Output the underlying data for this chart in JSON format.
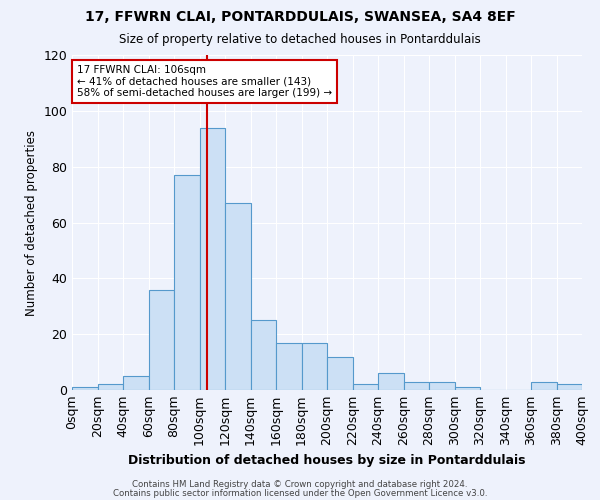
{
  "title": "17, FFWRN CLAI, PONTARDDULAIS, SWANSEA, SA4 8EF",
  "subtitle": "Size of property relative to detached houses in Pontarddulais",
  "xlabel": "Distribution of detached houses by size in Pontarddulais",
  "ylabel": "Number of detached properties",
  "footer_line1": "Contains HM Land Registry data © Crown copyright and database right 2024.",
  "footer_line2": "Contains public sector information licensed under the Open Government Licence v3.0.",
  "bin_edges": [
    0,
    20,
    40,
    60,
    80,
    100,
    120,
    140,
    160,
    180,
    200,
    220,
    240,
    260,
    280,
    300,
    320,
    340,
    360,
    380,
    400
  ],
  "counts": [
    1,
    2,
    5,
    36,
    77,
    94,
    67,
    25,
    17,
    17,
    12,
    2,
    6,
    3,
    3,
    1,
    0,
    0,
    3,
    2
  ],
  "bar_facecolor": "#cce0f5",
  "bar_edgecolor": "#5599cc",
  "vline_x": 106,
  "vline_color": "#cc0000",
  "annotation_text": "17 FFWRN CLAI: 106sqm\n← 41% of detached houses are smaller (143)\n58% of semi-detached houses are larger (199) →",
  "annotation_boxcolor": "white",
  "annotation_boxedge": "#cc0000",
  "ylim": [
    0,
    120
  ],
  "xlim": [
    0,
    400
  ],
  "background_color": "#eef2fc",
  "tick_labels": [
    "0sqm",
    "20sqm",
    "40sqm",
    "60sqm",
    "80sqm",
    "100sqm",
    "120sqm",
    "140sqm",
    "160sqm",
    "180sqm",
    "200sqm",
    "220sqm",
    "240sqm",
    "260sqm",
    "280sqm",
    "300sqm",
    "320sqm",
    "340sqm",
    "360sqm",
    "380sqm",
    "400sqm"
  ]
}
